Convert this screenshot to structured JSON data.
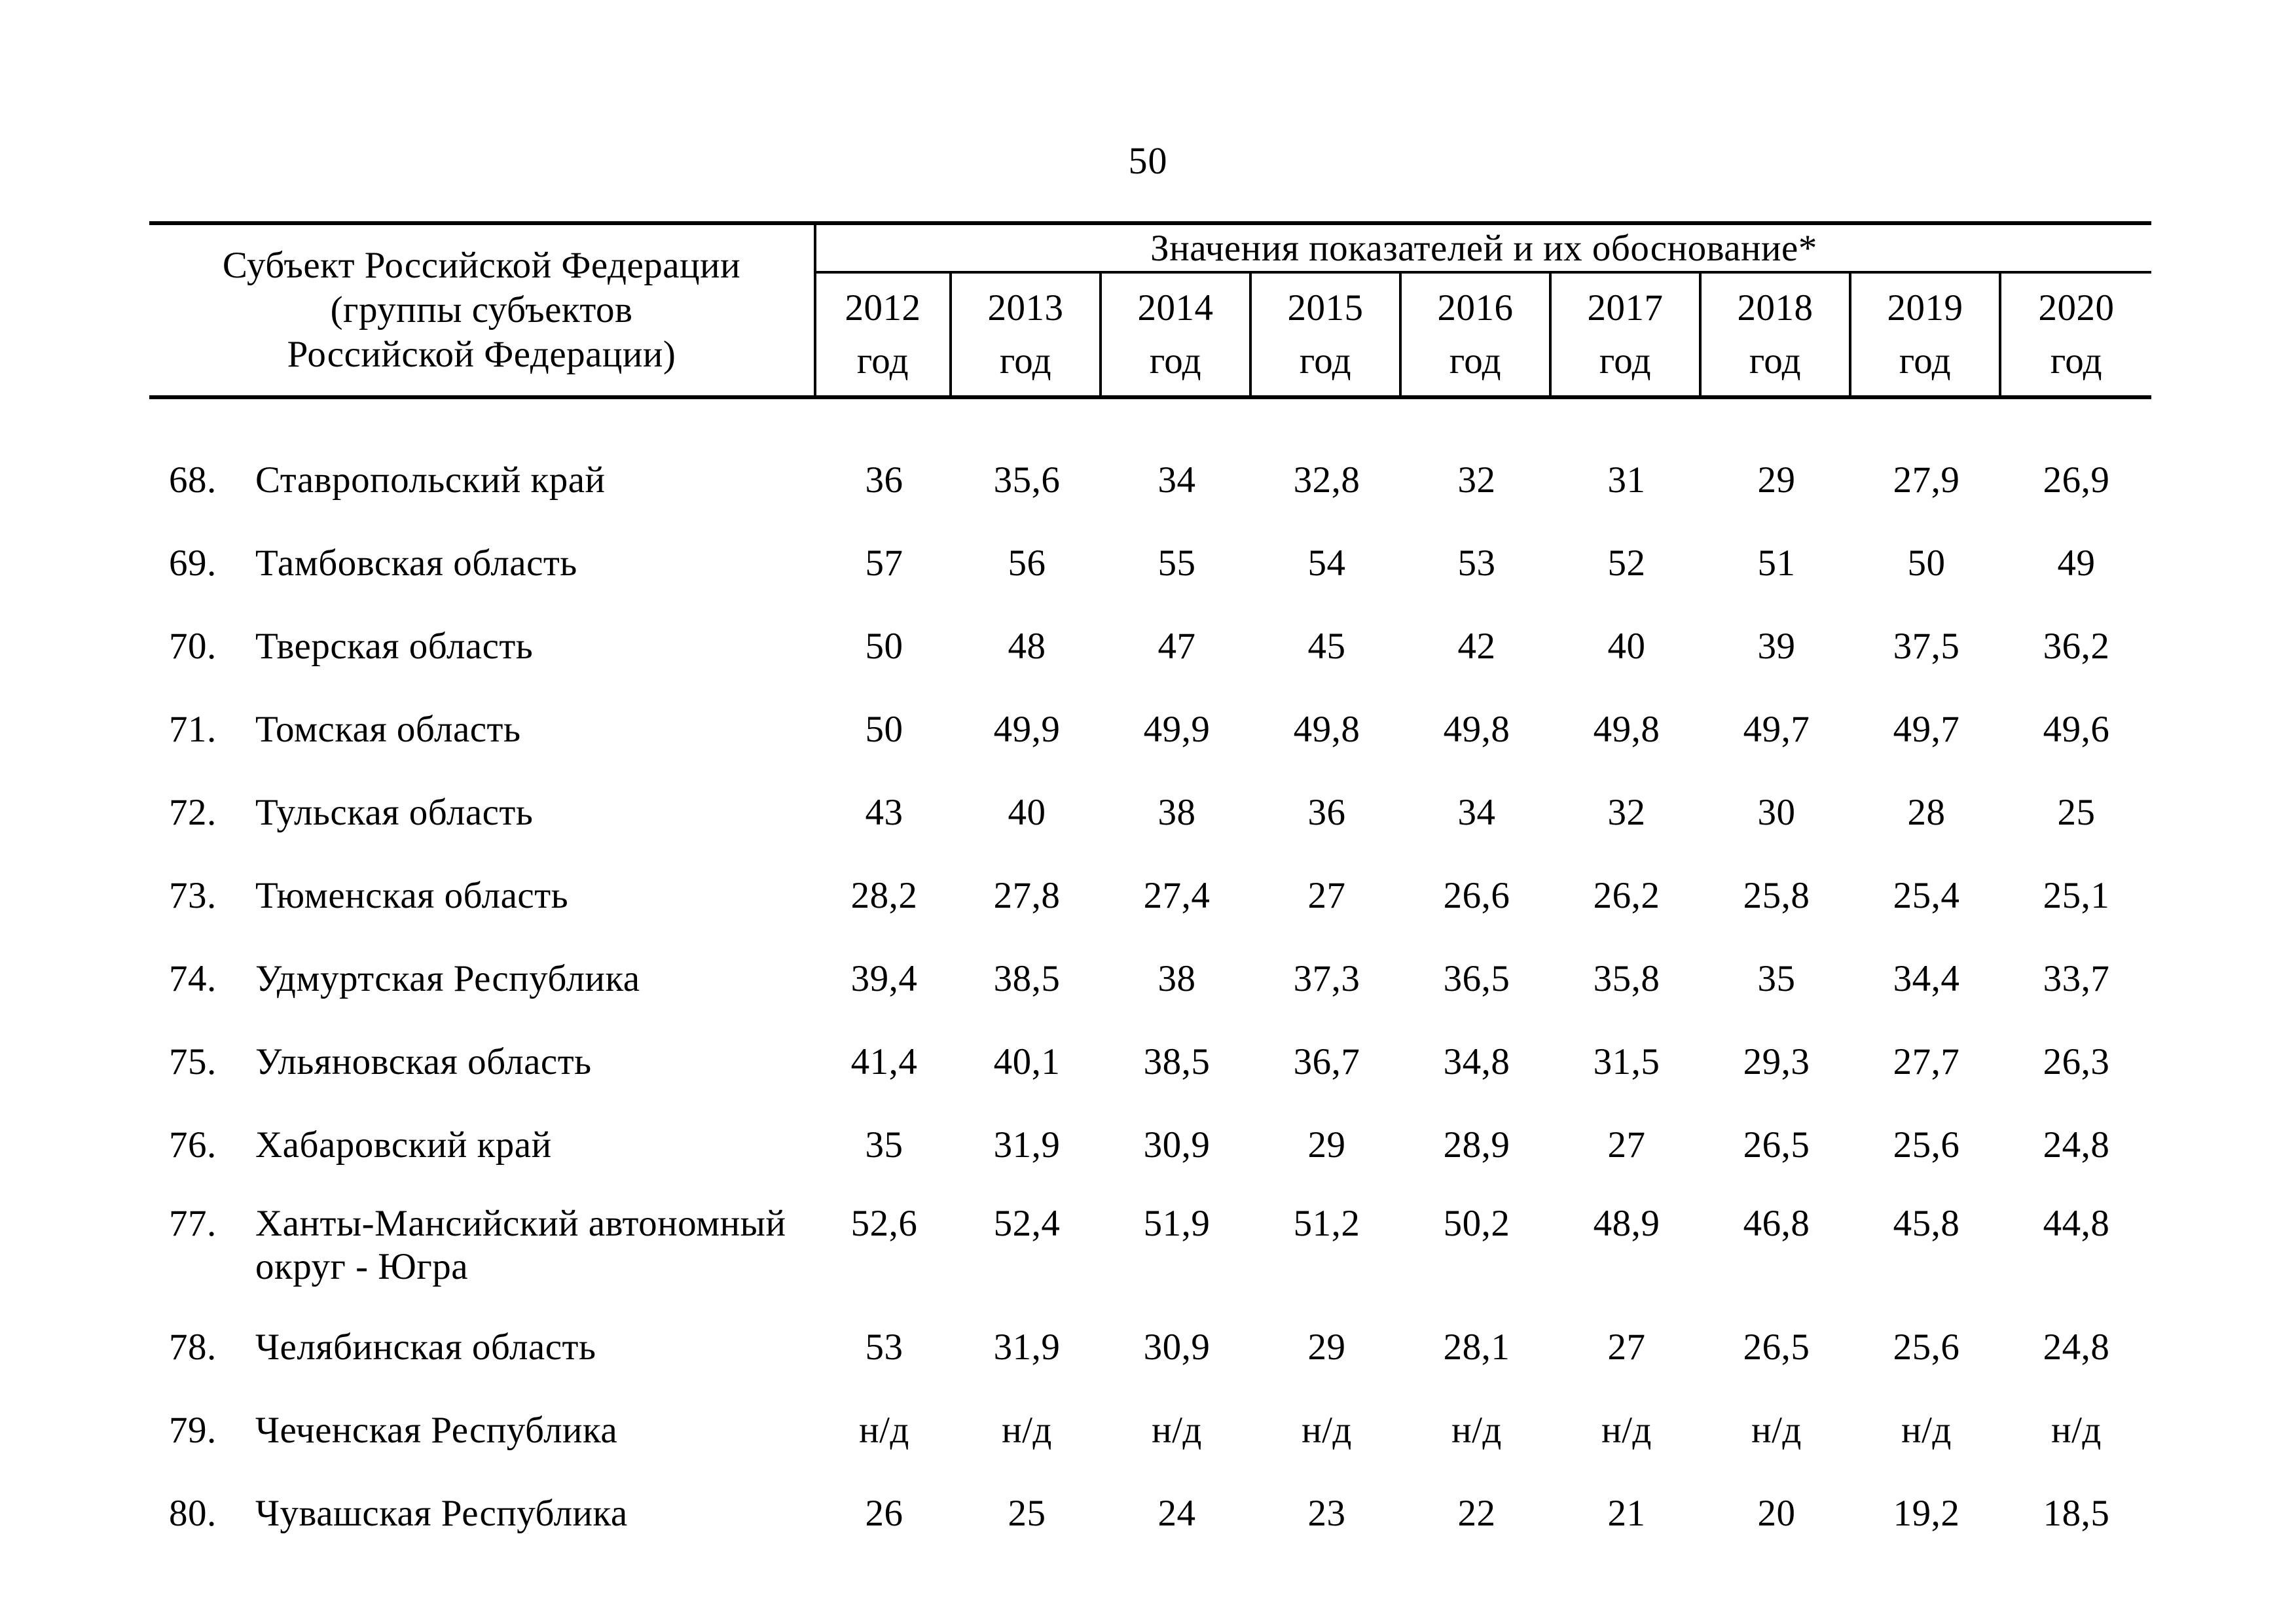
{
  "page": {
    "number": "50"
  },
  "table": {
    "header": {
      "subject_lines": [
        "Субъект Российской Федерации",
        "(группы субъектов",
        "Российской Федерации)"
      ],
      "values_label": "Значения показателей и их обоснование*",
      "years": [
        "2012",
        "2013",
        "2014",
        "2015",
        "2016",
        "2017",
        "2018",
        "2019",
        "2020"
      ],
      "year_suffix": "год"
    },
    "rows": [
      {
        "num": "68.",
        "name": "Ставропольский край",
        "values": [
          "36",
          "35,6",
          "34",
          "32,8",
          "32",
          "31",
          "29",
          "27,9",
          "26,9"
        ]
      },
      {
        "num": "69.",
        "name": "Тамбовская область",
        "values": [
          "57",
          "56",
          "55",
          "54",
          "53",
          "52",
          "51",
          "50",
          "49"
        ]
      },
      {
        "num": "70.",
        "name": "Тверская область",
        "values": [
          "50",
          "48",
          "47",
          "45",
          "42",
          "40",
          "39",
          "37,5",
          "36,2"
        ]
      },
      {
        "num": "71.",
        "name": "Томская область",
        "values": [
          "50",
          "49,9",
          "49,9",
          "49,8",
          "49,8",
          "49,8",
          "49,7",
          "49,7",
          "49,6"
        ]
      },
      {
        "num": "72.",
        "name": "Тульская область",
        "values": [
          "43",
          "40",
          "38",
          "36",
          "34",
          "32",
          "30",
          "28",
          "25"
        ]
      },
      {
        "num": "73.",
        "name": "Тюменская область",
        "values": [
          "28,2",
          "27,8",
          "27,4",
          "27",
          "26,6",
          "26,2",
          "25,8",
          "25,4",
          "25,1"
        ]
      },
      {
        "num": "74.",
        "name": "Удмуртская Республика",
        "values": [
          "39,4",
          "38,5",
          "38",
          "37,3",
          "36,5",
          "35,8",
          "35",
          "34,4",
          "33,7"
        ]
      },
      {
        "num": "75.",
        "name": "Ульяновская область",
        "values": [
          "41,4",
          "40,1",
          "38,5",
          "36,7",
          "34,8",
          "31,5",
          "29,3",
          "27,7",
          "26,3"
        ]
      },
      {
        "num": "76.",
        "name": "Хабаровский край",
        "values": [
          "35",
          "31,9",
          "30,9",
          "29",
          "28,9",
          "27",
          "26,5",
          "25,6",
          "24,8"
        ]
      },
      {
        "num": "77.",
        "name": "Ханты-Мансийский автономный округ - Югра",
        "two_line": true,
        "values": [
          "52,6",
          "52,4",
          "51,9",
          "51,2",
          "50,2",
          "48,9",
          "46,8",
          "45,8",
          "44,8"
        ]
      },
      {
        "num": "78.",
        "name": "Челябинская область",
        "values": [
          "53",
          "31,9",
          "30,9",
          "29",
          "28,1",
          "27",
          "26,5",
          "25,6",
          "24,8"
        ]
      },
      {
        "num": "79.",
        "name": "Чеченская Республика",
        "values": [
          "н/д",
          "н/д",
          "н/д",
          "н/д",
          "н/д",
          "н/д",
          "н/д",
          "н/д",
          "н/д"
        ]
      },
      {
        "num": "80.",
        "name": "Чувашская Республика",
        "values": [
          "26",
          "25",
          "24",
          "23",
          "22",
          "21",
          "20",
          "19,2",
          "18,5"
        ]
      }
    ]
  }
}
